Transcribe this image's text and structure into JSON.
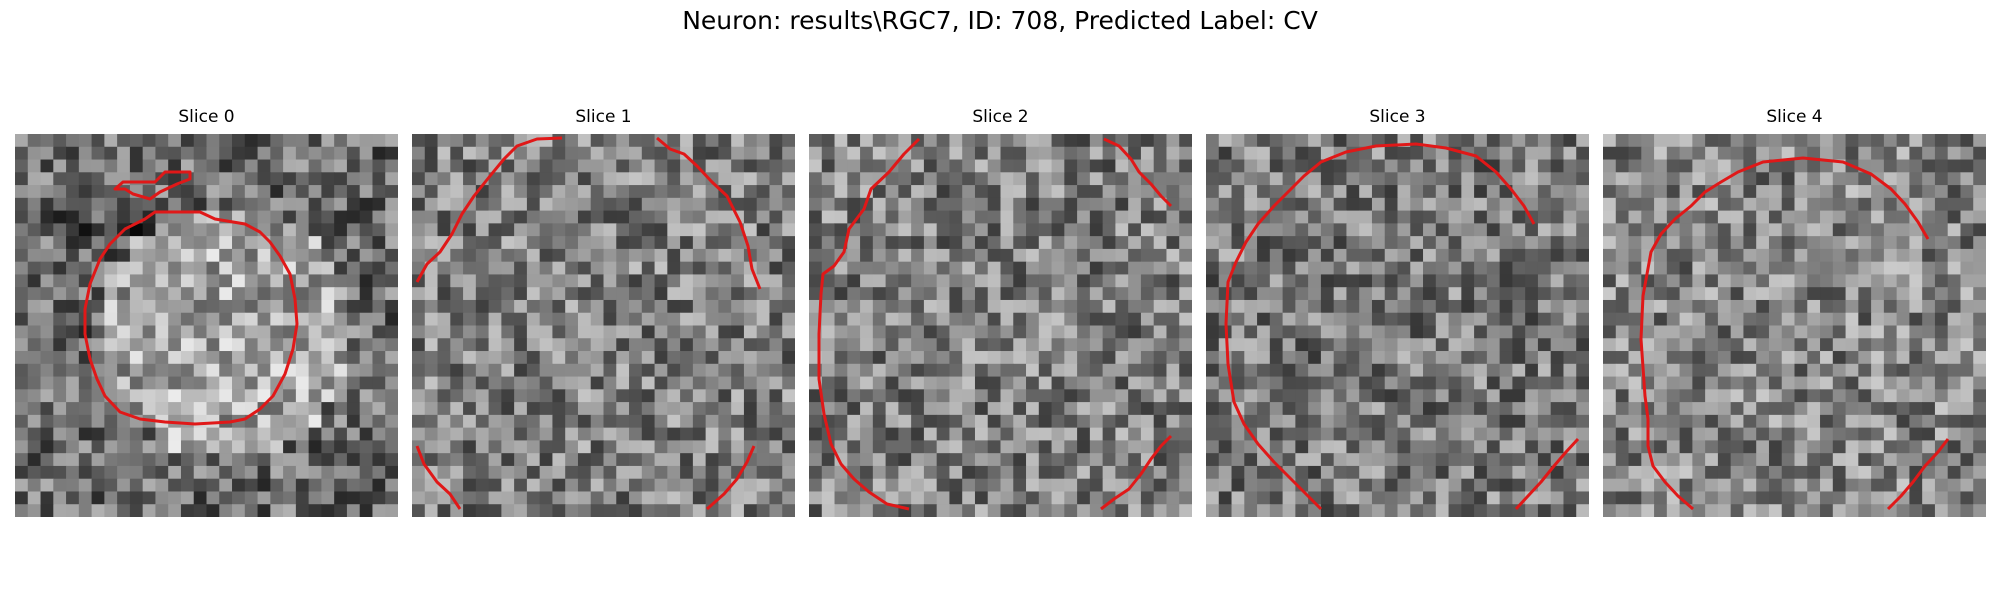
{
  "figure": {
    "title": "Neuron: results\\RGC7, ID: 708, Predicted Label: CV"
  },
  "colors": {
    "contour": "#e01818",
    "background": "#ffffff"
  },
  "panels": [
    {
      "title": "Slice 0"
    },
    {
      "title": "Slice 1"
    },
    {
      "title": "Slice 2"
    },
    {
      "title": "Slice 3"
    },
    {
      "title": "Slice 4"
    }
  ]
}
